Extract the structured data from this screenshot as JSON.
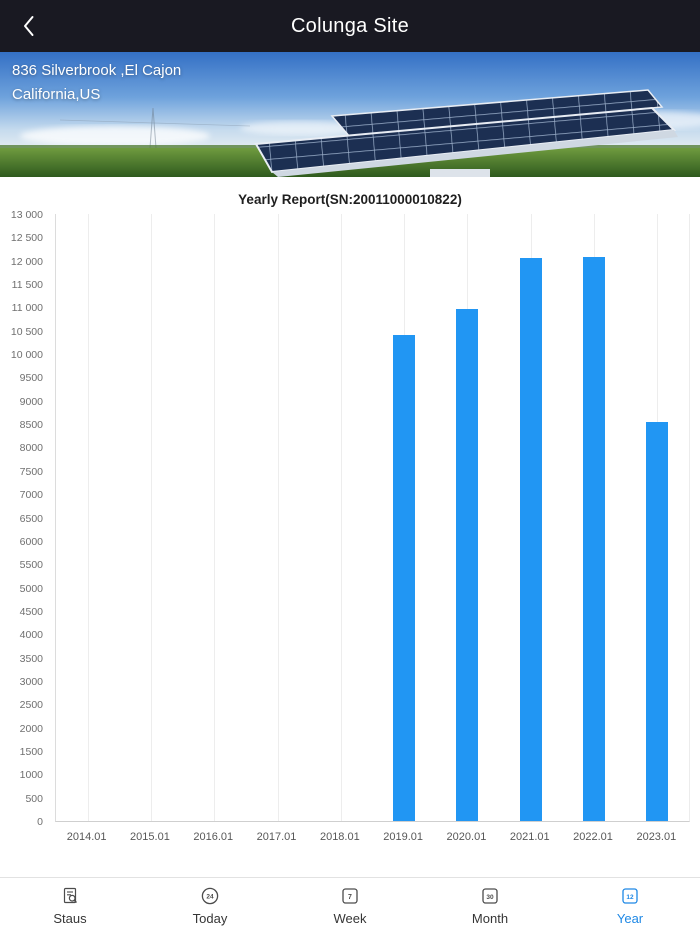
{
  "header": {
    "title": "Colunga Site",
    "back_icon": "chevron-left"
  },
  "hero": {
    "address_line1": "836 Silverbrook ,El Cajon",
    "address_line2": "California,US",
    "photo": "solar-panel-array-field"
  },
  "chart_data": {
    "type": "bar",
    "title": "Yearly Report(SN:20011000010822)",
    "categories": [
      "2014.01",
      "2015.01",
      "2016.01",
      "2017.01",
      "2018.01",
      "2019.01",
      "2020.01",
      "2021.01",
      "2022.01",
      "2023.01"
    ],
    "values": [
      0,
      0,
      0,
      0,
      0,
      10400,
      10970,
      12050,
      12080,
      8550
    ],
    "xlabel": "",
    "ylabel": "",
    "ylim": [
      0,
      13000
    ],
    "ytick_step": 500,
    "ytick_format": "space-thousands",
    "bar_color": "#2196f3",
    "grid": "vertical",
    "legend": "none"
  },
  "tabbar": {
    "active_color": "#1e88e5",
    "items": [
      {
        "label": "Staus",
        "icon": "report-search-icon",
        "active": false
      },
      {
        "label": "Today",
        "icon": "circle-24-icon",
        "badge": "24",
        "active": false
      },
      {
        "label": "Week",
        "icon": "square-7-icon",
        "badge": "7",
        "active": false
      },
      {
        "label": "Month",
        "icon": "square-30-icon",
        "badge": "30",
        "active": false
      },
      {
        "label": "Year",
        "icon": "square-12-icon",
        "badge": "12",
        "active": true
      }
    ]
  }
}
